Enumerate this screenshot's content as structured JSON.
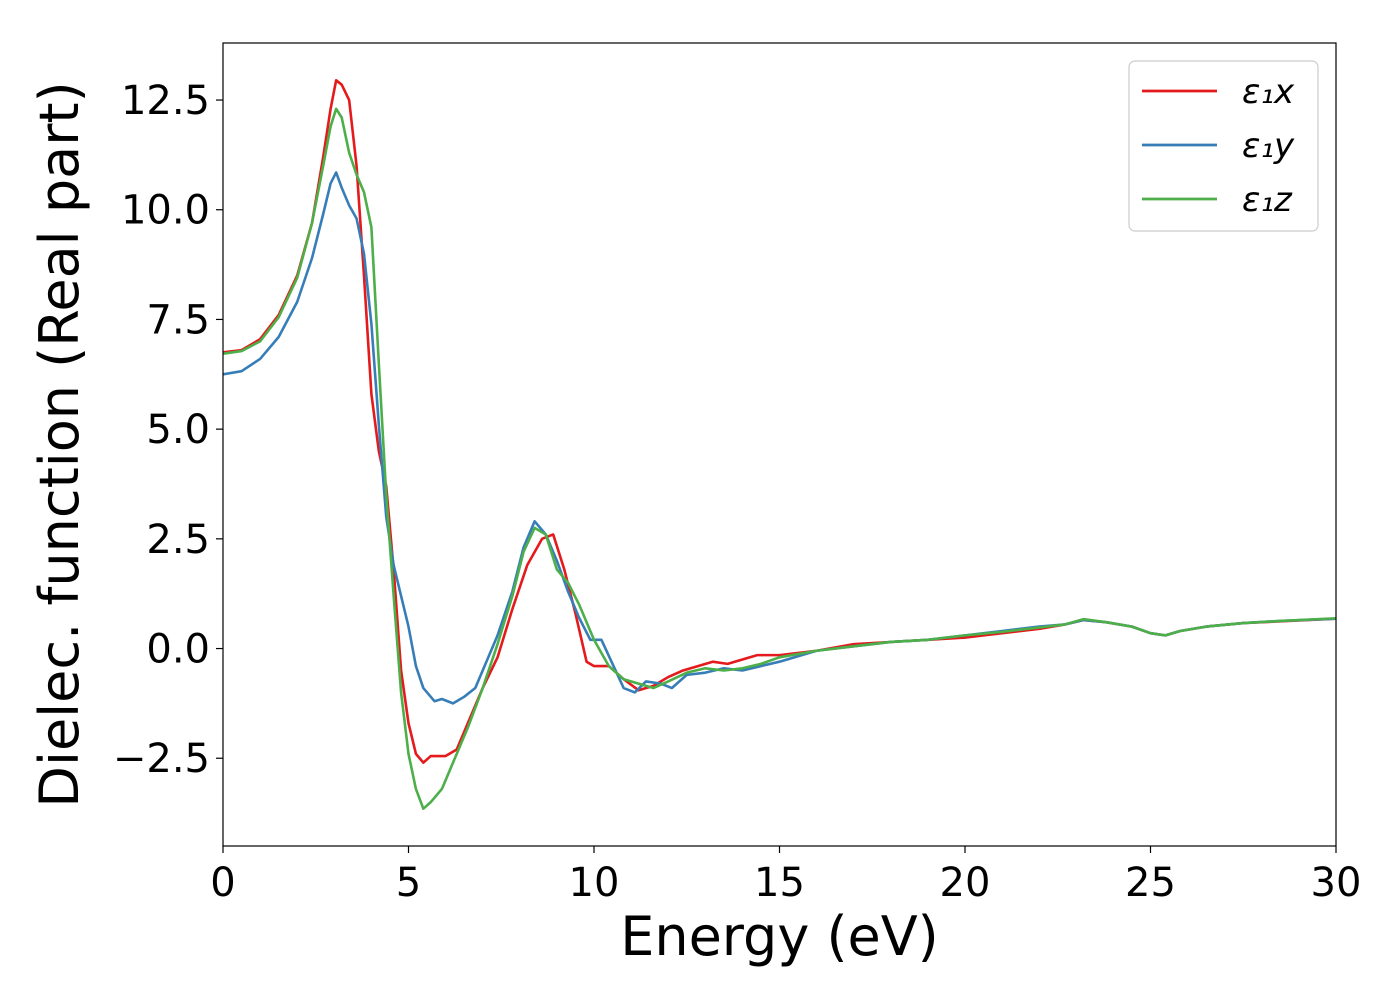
{
  "chart_data": {
    "type": "line",
    "title": "",
    "xlabel": "Energy (eV)",
    "ylabel": "Dielec. function (Real part)",
    "xlim": [
      0,
      30
    ],
    "ylim": [
      -4.5,
      13.8
    ],
    "xticks": [
      0,
      5,
      10,
      15,
      20,
      25,
      30
    ],
    "xtick_labels": [
      "0",
      "5",
      "10",
      "15",
      "20",
      "25",
      "30"
    ],
    "yticks": [
      -2.5,
      0.0,
      2.5,
      5.0,
      7.5,
      10.0,
      12.5
    ],
    "ytick_labels": [
      "−2.5",
      "0.0",
      "2.5",
      "5.0",
      "7.5",
      "10.0",
      "12.5"
    ],
    "grid": false,
    "legend": {
      "position": "top-right",
      "entries": [
        "ε₁x",
        "ε₁y",
        "ε₁z"
      ]
    },
    "series": [
      {
        "name": "ε₁x",
        "color": "#e41a1c",
        "points": [
          [
            0,
            6.75
          ],
          [
            0.5,
            6.8
          ],
          [
            1,
            7.05
          ],
          [
            1.5,
            7.6
          ],
          [
            2,
            8.5
          ],
          [
            2.4,
            9.7
          ],
          [
            2.7,
            11.2
          ],
          [
            2.9,
            12.3
          ],
          [
            3.05,
            12.95
          ],
          [
            3.2,
            12.85
          ],
          [
            3.4,
            12.5
          ],
          [
            3.6,
            11.0
          ],
          [
            3.8,
            8.5
          ],
          [
            4.0,
            5.8
          ],
          [
            4.2,
            4.5
          ],
          [
            4.4,
            3.7
          ],
          [
            4.6,
            1.8
          ],
          [
            4.8,
            -0.5
          ],
          [
            5.0,
            -1.7
          ],
          [
            5.2,
            -2.4
          ],
          [
            5.4,
            -2.6
          ],
          [
            5.6,
            -2.45
          ],
          [
            6.0,
            -2.45
          ],
          [
            6.3,
            -2.3
          ],
          [
            6.6,
            -1.7
          ],
          [
            7.0,
            -0.9
          ],
          [
            7.4,
            -0.2
          ],
          [
            7.8,
            0.9
          ],
          [
            8.2,
            1.9
          ],
          [
            8.6,
            2.5
          ],
          [
            8.9,
            2.6
          ],
          [
            9.2,
            1.8
          ],
          [
            9.5,
            0.8
          ],
          [
            9.8,
            -0.3
          ],
          [
            10.0,
            -0.4
          ],
          [
            10.4,
            -0.4
          ],
          [
            10.8,
            -0.7
          ],
          [
            11.2,
            -0.95
          ],
          [
            11.6,
            -0.85
          ],
          [
            12.0,
            -0.65
          ],
          [
            12.4,
            -0.5
          ],
          [
            12.8,
            -0.4
          ],
          [
            13.2,
            -0.3
          ],
          [
            13.6,
            -0.35
          ],
          [
            14.0,
            -0.25
          ],
          [
            14.4,
            -0.15
          ],
          [
            15.0,
            -0.15
          ],
          [
            16.0,
            -0.05
          ],
          [
            17.0,
            0.1
          ],
          [
            18.0,
            0.15
          ],
          [
            19.0,
            0.2
          ],
          [
            20.0,
            0.25
          ],
          [
            21.0,
            0.35
          ],
          [
            22.0,
            0.45
          ],
          [
            22.7,
            0.55
          ],
          [
            23.2,
            0.65
          ],
          [
            23.8,
            0.6
          ],
          [
            24.5,
            0.5
          ],
          [
            25.0,
            0.35
          ],
          [
            25.4,
            0.3
          ],
          [
            25.8,
            0.4
          ],
          [
            26.5,
            0.5
          ],
          [
            27.5,
            0.58
          ],
          [
            28.5,
            0.62
          ],
          [
            30,
            0.68
          ]
        ]
      },
      {
        "name": "ε₁y",
        "color": "#377eb8",
        "points": [
          [
            0,
            6.25
          ],
          [
            0.5,
            6.32
          ],
          [
            1,
            6.6
          ],
          [
            1.5,
            7.1
          ],
          [
            2,
            7.9
          ],
          [
            2.4,
            8.9
          ],
          [
            2.7,
            9.9
          ],
          [
            2.9,
            10.6
          ],
          [
            3.05,
            10.85
          ],
          [
            3.2,
            10.5
          ],
          [
            3.4,
            10.1
          ],
          [
            3.6,
            9.8
          ],
          [
            3.8,
            9.0
          ],
          [
            4.0,
            7.4
          ],
          [
            4.2,
            5.1
          ],
          [
            4.4,
            3.0
          ],
          [
            4.6,
            1.9
          ],
          [
            4.8,
            1.2
          ],
          [
            5.0,
            0.5
          ],
          [
            5.2,
            -0.4
          ],
          [
            5.4,
            -0.9
          ],
          [
            5.7,
            -1.2
          ],
          [
            5.9,
            -1.15
          ],
          [
            6.2,
            -1.25
          ],
          [
            6.5,
            -1.1
          ],
          [
            6.8,
            -0.9
          ],
          [
            7.0,
            -0.5
          ],
          [
            7.4,
            0.3
          ],
          [
            7.8,
            1.3
          ],
          [
            8.1,
            2.3
          ],
          [
            8.4,
            2.9
          ],
          [
            8.7,
            2.6
          ],
          [
            9.0,
            2.0
          ],
          [
            9.3,
            1.3
          ],
          [
            9.6,
            0.7
          ],
          [
            9.9,
            0.2
          ],
          [
            10.2,
            0.2
          ],
          [
            10.5,
            -0.35
          ],
          [
            10.8,
            -0.9
          ],
          [
            11.1,
            -1.0
          ],
          [
            11.4,
            -0.75
          ],
          [
            11.8,
            -0.8
          ],
          [
            12.1,
            -0.9
          ],
          [
            12.5,
            -0.6
          ],
          [
            13.0,
            -0.55
          ],
          [
            13.5,
            -0.45
          ],
          [
            14.0,
            -0.5
          ],
          [
            14.5,
            -0.4
          ],
          [
            15.0,
            -0.3
          ],
          [
            16.0,
            -0.05
          ],
          [
            17.0,
            0.05
          ],
          [
            18.0,
            0.15
          ],
          [
            19.0,
            0.2
          ],
          [
            20.0,
            0.3
          ],
          [
            21.0,
            0.4
          ],
          [
            22.0,
            0.5
          ],
          [
            22.7,
            0.55
          ],
          [
            23.2,
            0.65
          ],
          [
            23.8,
            0.6
          ],
          [
            24.5,
            0.5
          ],
          [
            25.0,
            0.35
          ],
          [
            25.4,
            0.3
          ],
          [
            25.8,
            0.4
          ],
          [
            26.5,
            0.5
          ],
          [
            27.5,
            0.58
          ],
          [
            28.5,
            0.63
          ],
          [
            30,
            0.68
          ]
        ]
      },
      {
        "name": "ε₁z",
        "color": "#4daf4a",
        "points": [
          [
            0,
            6.72
          ],
          [
            0.5,
            6.78
          ],
          [
            1,
            7.0
          ],
          [
            1.5,
            7.55
          ],
          [
            2,
            8.45
          ],
          [
            2.4,
            9.7
          ],
          [
            2.7,
            11.0
          ],
          [
            2.9,
            11.9
          ],
          [
            3.05,
            12.3
          ],
          [
            3.2,
            12.1
          ],
          [
            3.4,
            11.3
          ],
          [
            3.6,
            10.8
          ],
          [
            3.8,
            10.4
          ],
          [
            4.0,
            9.6
          ],
          [
            4.2,
            6.5
          ],
          [
            4.4,
            3.5
          ],
          [
            4.6,
            1.2
          ],
          [
            4.8,
            -1.0
          ],
          [
            5.0,
            -2.4
          ],
          [
            5.2,
            -3.2
          ],
          [
            5.4,
            -3.65
          ],
          [
            5.6,
            -3.5
          ],
          [
            5.9,
            -3.2
          ],
          [
            6.2,
            -2.6
          ],
          [
            6.6,
            -1.8
          ],
          [
            7.0,
            -0.9
          ],
          [
            7.4,
            0.1
          ],
          [
            7.8,
            1.2
          ],
          [
            8.1,
            2.2
          ],
          [
            8.4,
            2.75
          ],
          [
            8.7,
            2.6
          ],
          [
            9.0,
            1.8
          ],
          [
            9.3,
            1.5
          ],
          [
            9.6,
            1.0
          ],
          [
            10.0,
            0.2
          ],
          [
            10.4,
            -0.4
          ],
          [
            10.8,
            -0.7
          ],
          [
            11.2,
            -0.8
          ],
          [
            11.6,
            -0.9
          ],
          [
            12.0,
            -0.75
          ],
          [
            12.5,
            -0.55
          ],
          [
            13.0,
            -0.45
          ],
          [
            13.5,
            -0.5
          ],
          [
            14.0,
            -0.45
          ],
          [
            14.5,
            -0.35
          ],
          [
            15.0,
            -0.2
          ],
          [
            16.0,
            -0.05
          ],
          [
            17.0,
            0.05
          ],
          [
            18.0,
            0.15
          ],
          [
            19.0,
            0.2
          ],
          [
            20.0,
            0.3
          ],
          [
            21.0,
            0.38
          ],
          [
            22.0,
            0.48
          ],
          [
            22.7,
            0.55
          ],
          [
            23.2,
            0.67
          ],
          [
            23.8,
            0.6
          ],
          [
            24.5,
            0.5
          ],
          [
            25.0,
            0.35
          ],
          [
            25.4,
            0.3
          ],
          [
            25.8,
            0.4
          ],
          [
            26.5,
            0.5
          ],
          [
            27.5,
            0.58
          ],
          [
            28.5,
            0.63
          ],
          [
            30,
            0.69
          ]
        ]
      }
    ]
  }
}
